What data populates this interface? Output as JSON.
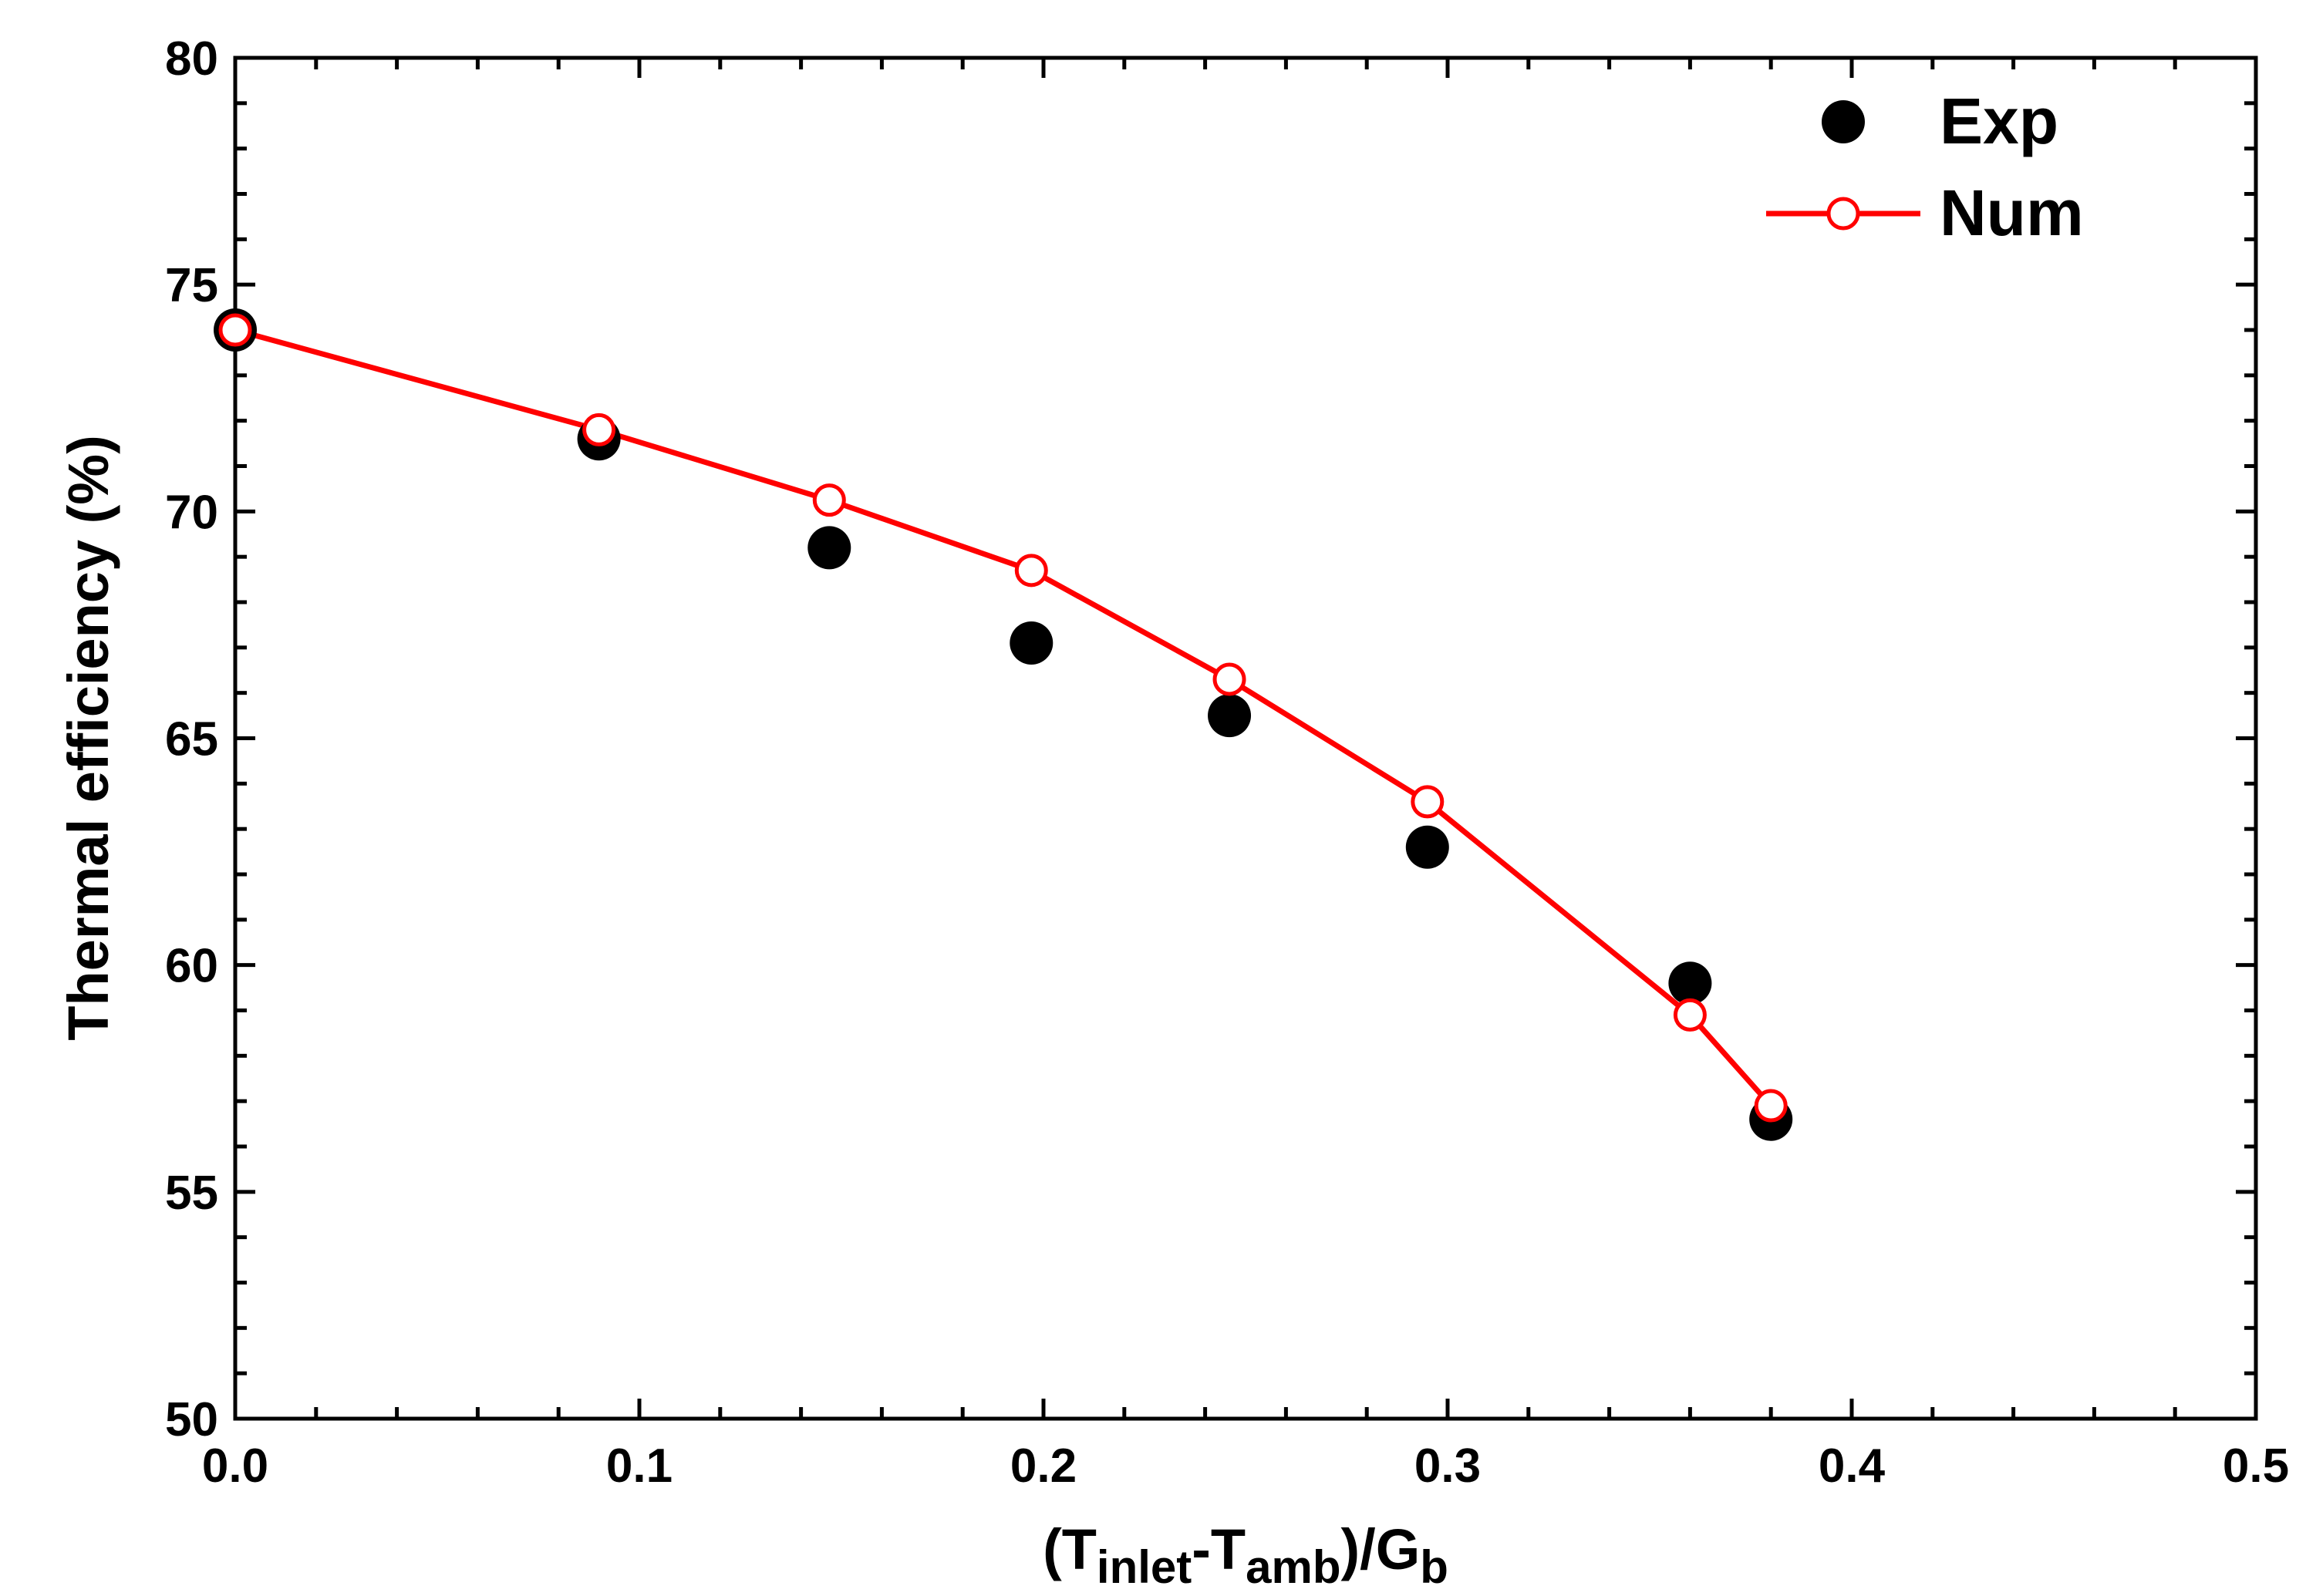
{
  "chart_data": {
    "type": "scatter",
    "title": "",
    "xlabel": {
      "prefix": "(T",
      "sub1": "inlet",
      "mid": "-T",
      "sub2": "amb",
      "mid2": ")/G",
      "sub3": "b"
    },
    "ylabel": "Thermal efficiency (%)",
    "xlim": [
      0.0,
      0.5
    ],
    "ylim": [
      50,
      80
    ],
    "x_ticks": [
      "0.0",
      "0.1",
      "0.2",
      "0.3",
      "0.4",
      "0.5"
    ],
    "y_ticks": [
      "50",
      "55",
      "60",
      "65",
      "70",
      "75",
      "80"
    ],
    "legend_position": "top-right",
    "series": [
      {
        "name": "Exp",
        "style": "filled-circle",
        "color": "#000000",
        "x": [
          0.0,
          0.09,
          0.147,
          0.197,
          0.246,
          0.295,
          0.36,
          0.38
        ],
        "y": [
          74.0,
          71.6,
          69.2,
          67.1,
          65.5,
          62.6,
          59.6,
          56.6
        ]
      },
      {
        "name": "Num",
        "style": "line-open-circle",
        "color": "#ff0000",
        "x": [
          0.0,
          0.09,
          0.147,
          0.197,
          0.246,
          0.295,
          0.36,
          0.38
        ],
        "y": [
          74.0,
          71.8,
          70.25,
          68.7,
          66.3,
          63.6,
          58.9,
          56.9
        ]
      }
    ]
  }
}
